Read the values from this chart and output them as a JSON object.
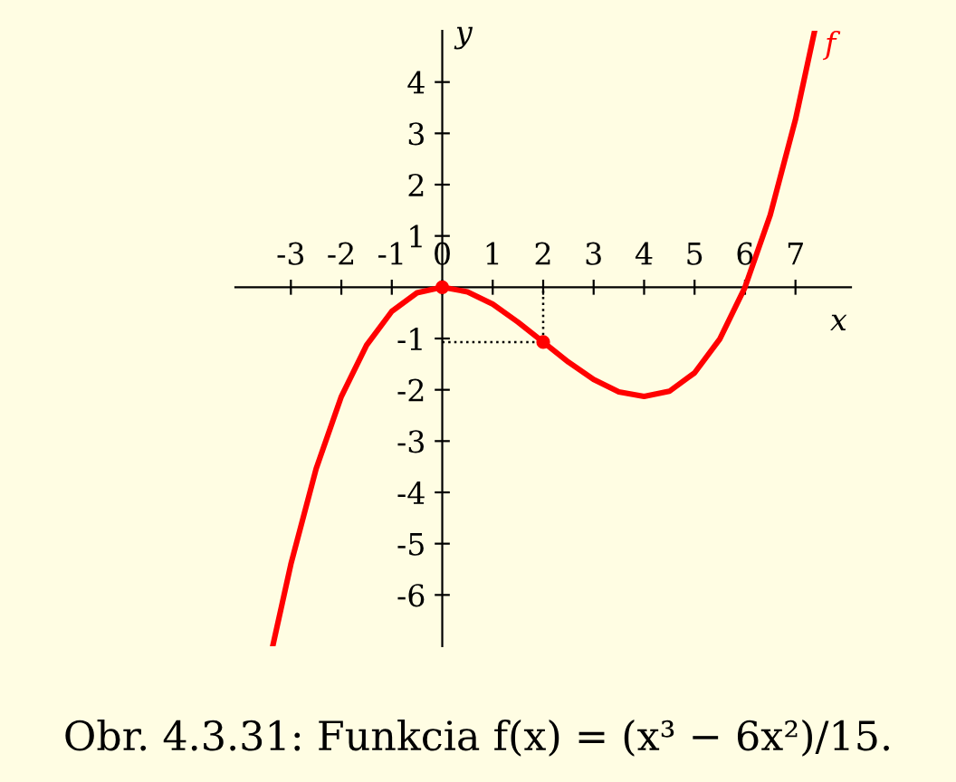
{
  "chart_data": {
    "type": "line",
    "xlabel": "x",
    "ylabel": "y",
    "line_style": "solid",
    "marker": "none",
    "xlim": [
      -4.1,
      8.1
    ],
    "ylim": [
      -7.0,
      5.0
    ],
    "xticks": [
      -3,
      -2,
      -1,
      0,
      1,
      2,
      3,
      4,
      5,
      6,
      7
    ],
    "yticks": [
      -6,
      -5,
      -4,
      -3,
      -2,
      -1,
      1,
      2,
      3,
      4
    ],
    "annotations": [
      "Obr. 4.3.31: Funkcia f(x) = (x³ − 6x²)/15."
    ],
    "series": [
      {
        "name": "f",
        "color": "#ff0000",
        "x": [
          -3.36,
          -3,
          -2.5,
          -2,
          -1.5,
          -1,
          -0.5,
          0,
          0.5,
          1,
          1.5,
          2,
          2.5,
          3,
          3.5,
          4,
          4.5,
          5,
          5.5,
          6,
          6.5,
          7,
          7.38
        ],
        "values": [
          -7.0,
          -5.4,
          -3.54,
          -2.13,
          -1.13,
          -0.47,
          -0.11,
          0,
          -0.09,
          -0.33,
          -0.68,
          -1.07,
          -1.46,
          -1.8,
          -2.04,
          -2.13,
          -2.03,
          -1.67,
          -1.01,
          0,
          1.41,
          3.27,
          5.0
        ]
      },
      {
        "type": "line",
        "color": "#000000",
        "line_style": "dotted",
        "x": [
          0,
          2,
          2
        ],
        "values": [
          -1.07,
          -1.07,
          0
        ]
      },
      {
        "type": "scatter",
        "color": "#ff0000",
        "marker": "circle",
        "x": [
          0,
          2
        ],
        "values": [
          0,
          -1.07
        ]
      }
    ]
  }
}
